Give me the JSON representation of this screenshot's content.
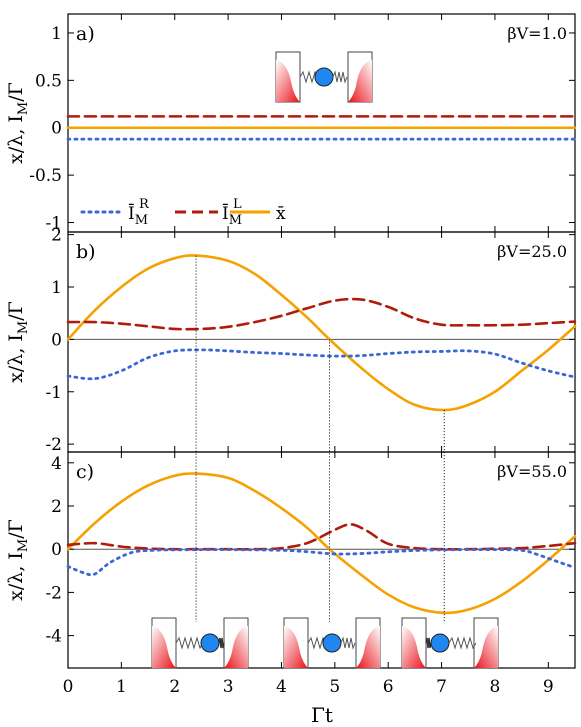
{
  "colors": {
    "x_bar": "#f5a100",
    "I_R": "#3a66d8",
    "I_L": "#b01c0c",
    "zero_line": "#555555",
    "guide": "#000000",
    "device_red": "#e8121a",
    "ball_blue": "#1f88f0"
  },
  "xaxis": {
    "label": "Γt",
    "range": [
      0,
      9.5
    ],
    "ticks": [
      "0",
      "1",
      "2",
      "3",
      "4",
      "5",
      "6",
      "7",
      "8",
      "9"
    ]
  },
  "ylabel_parts": {
    "a": "x/λ, I",
    "sub": "M",
    "b": "/Γ"
  },
  "legend": {
    "I_R": {
      "base": "Ī",
      "sup": "R",
      "sub": "M"
    },
    "I_L": {
      "base": "Ī",
      "sup": "L",
      "sub": "M"
    },
    "x": {
      "base": "x̄"
    }
  },
  "guide_times": [
    2.4,
    4.9,
    7.05
  ],
  "chart_data": [
    {
      "type": "line",
      "panel": "a)",
      "param": "βV=1.0",
      "ylim": [
        -1.1,
        1.2
      ],
      "yticks": [
        "-1",
        "-0.5",
        "0",
        "0.5",
        "1"
      ],
      "series": [
        {
          "name": "Ī_M^R",
          "style": "dotted",
          "x": [
            0,
            9.5
          ],
          "y": [
            -0.12,
            -0.12
          ]
        },
        {
          "name": "Ī_M^L",
          "style": "dashed",
          "x": [
            0,
            9.5
          ],
          "y": [
            0.12,
            0.12
          ]
        },
        {
          "name": "x̄",
          "style": "solid",
          "x": [
            0,
            9.5
          ],
          "y": [
            0.0,
            0.0
          ]
        }
      ]
    },
    {
      "type": "line",
      "panel": "b)",
      "param": "βV=25.0",
      "ylim": [
        -2.15,
        2.05
      ],
      "yticks": [
        "-2",
        "-1",
        "0",
        "1",
        "2"
      ],
      "series": [
        {
          "name": "x̄",
          "style": "solid",
          "x": [
            0,
            0.5,
            1,
            1.5,
            2,
            2.4,
            3,
            3.5,
            4,
            4.5,
            4.9,
            5.5,
            6,
            6.5,
            7.05,
            7.5,
            8,
            8.5,
            9,
            9.5
          ],
          "y": [
            0,
            0.55,
            1.0,
            1.35,
            1.55,
            1.6,
            1.5,
            1.25,
            0.85,
            0.4,
            0.0,
            -0.55,
            -0.95,
            -1.25,
            -1.35,
            -1.25,
            -1.0,
            -0.6,
            -0.2,
            0.25
          ]
        },
        {
          "name": "Ī_M^L",
          "style": "dashed",
          "x": [
            0,
            0.5,
            1,
            1.5,
            2,
            2.5,
            3,
            3.5,
            4,
            4.5,
            5,
            5.5,
            6,
            6.5,
            7,
            7.5,
            8,
            8.5,
            9,
            9.5
          ],
          "y": [
            0.33,
            0.33,
            0.3,
            0.25,
            0.2,
            0.2,
            0.24,
            0.33,
            0.45,
            0.6,
            0.74,
            0.76,
            0.62,
            0.4,
            0.28,
            0.27,
            0.27,
            0.28,
            0.31,
            0.34
          ]
        },
        {
          "name": "Ī_M^R",
          "style": "dotted",
          "x": [
            0,
            0.5,
            1,
            1.5,
            2,
            2.5,
            3,
            3.5,
            4,
            4.5,
            5,
            5.5,
            6,
            6.5,
            7,
            7.5,
            8,
            8.5,
            9,
            9.5
          ],
          "y": [
            -0.7,
            -0.75,
            -0.6,
            -0.35,
            -0.22,
            -0.2,
            -0.22,
            -0.25,
            -0.27,
            -0.3,
            -0.32,
            -0.31,
            -0.27,
            -0.24,
            -0.23,
            -0.22,
            -0.28,
            -0.45,
            -0.6,
            -0.72
          ]
        }
      ]
    },
    {
      "type": "line",
      "panel": "c)",
      "param": "βV=55.0",
      "ylim": [
        -5.5,
        4.5
      ],
      "yticks": [
        "-4",
        "-2",
        "0",
        "2",
        "4"
      ],
      "series": [
        {
          "name": "x̄",
          "style": "solid",
          "x": [
            0,
            0.5,
            1,
            1.5,
            2,
            2.4,
            3,
            3.5,
            4,
            4.5,
            4.9,
            5.5,
            6,
            6.5,
            7.05,
            7.5,
            8,
            8.5,
            9,
            9.5
          ],
          "y": [
            0,
            1.2,
            2.2,
            2.95,
            3.4,
            3.5,
            3.3,
            2.7,
            1.9,
            0.95,
            0.0,
            -1.2,
            -2.1,
            -2.7,
            -2.95,
            -2.8,
            -2.3,
            -1.5,
            -0.5,
            0.6
          ]
        },
        {
          "name": "Ī_M^L",
          "style": "dashed",
          "x": [
            0,
            0.5,
            1,
            1.5,
            2,
            2.5,
            3,
            3.5,
            4,
            4.5,
            5,
            5.3,
            5.6,
            6,
            6.5,
            7,
            7.5,
            8,
            8.5,
            9,
            9.5
          ],
          "y": [
            0.2,
            0.28,
            0.12,
            0.03,
            0.0,
            0.0,
            0.0,
            0.0,
            0.05,
            0.3,
            0.9,
            1.15,
            0.85,
            0.25,
            0.05,
            0.0,
            0.0,
            0.02,
            0.05,
            0.15,
            0.28
          ]
        },
        {
          "name": "Ī_M^R",
          "style": "dotted",
          "x": [
            0,
            0.3,
            0.5,
            0.8,
            1.2,
            1.6,
            2,
            3,
            4,
            4.5,
            5,
            5.5,
            6,
            6.5,
            7,
            7.5,
            8,
            8.5,
            8.8,
            9.2,
            9.5
          ],
          "y": [
            -0.8,
            -1.1,
            -1.15,
            -0.6,
            -0.15,
            -0.05,
            -0.03,
            -0.02,
            -0.05,
            -0.12,
            -0.22,
            -0.2,
            -0.12,
            -0.06,
            -0.03,
            -0.02,
            -0.02,
            -0.05,
            -0.25,
            -0.6,
            -0.85
          ]
        }
      ]
    }
  ]
}
